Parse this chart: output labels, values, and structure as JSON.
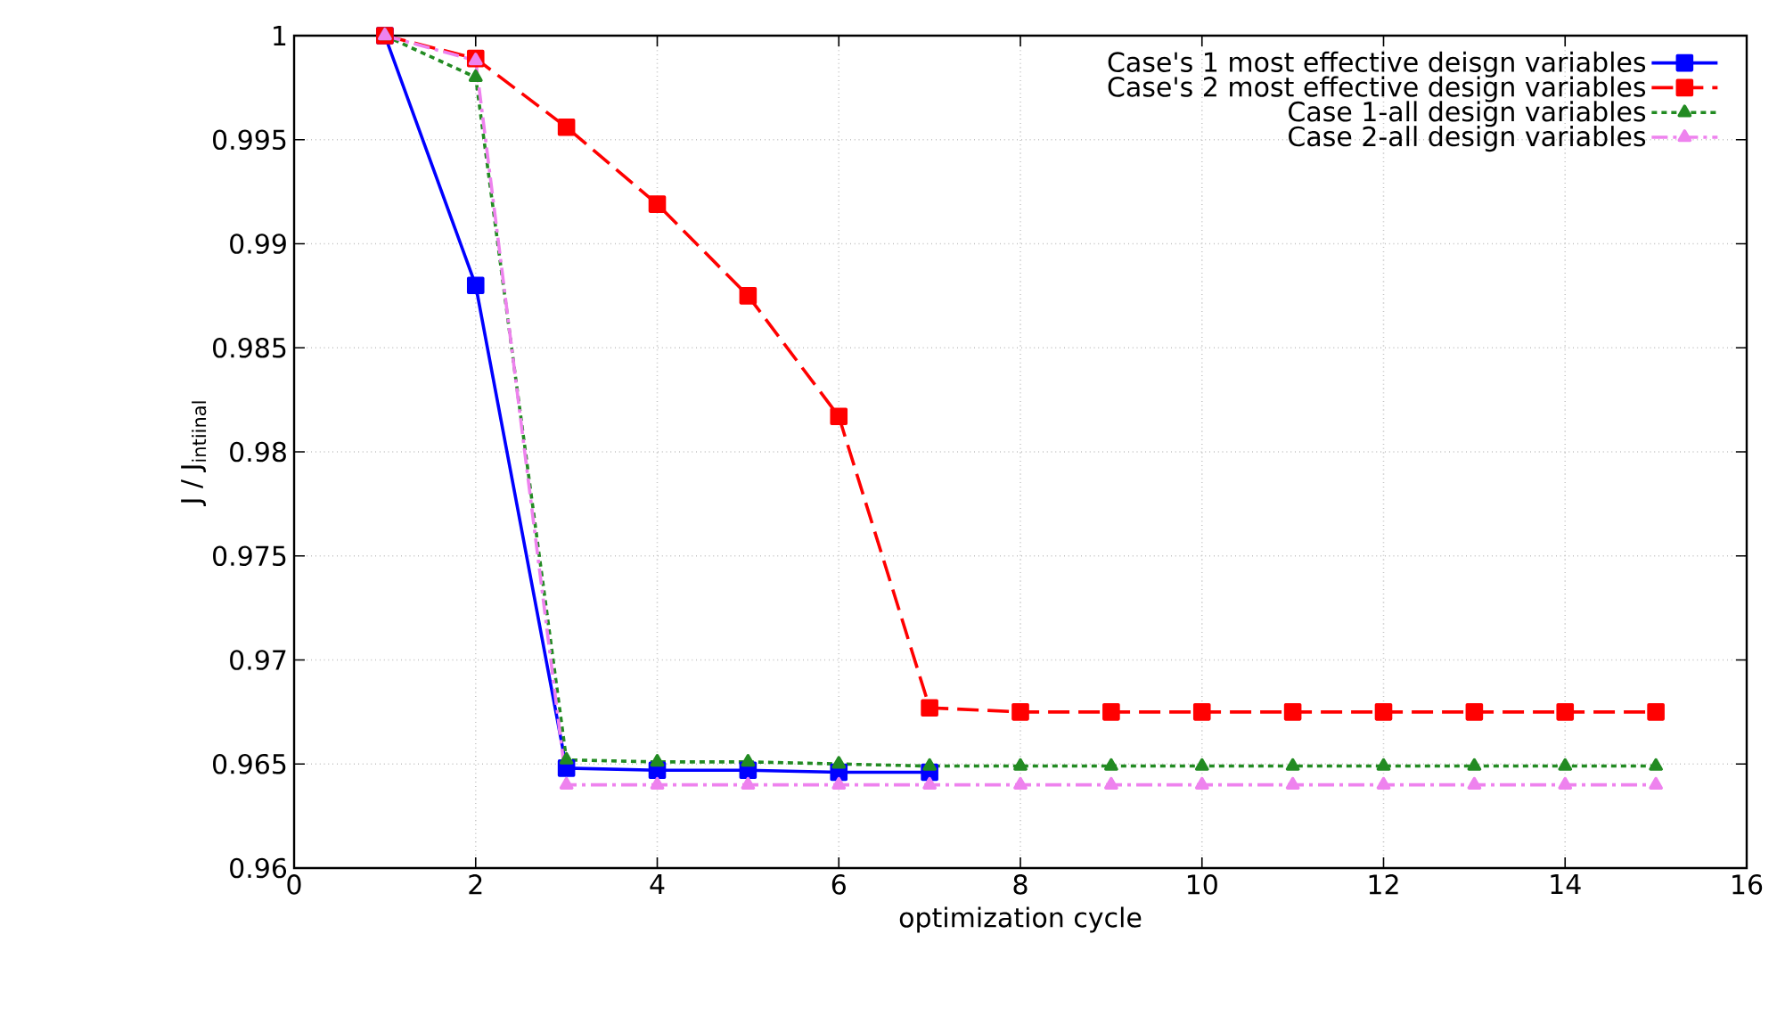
{
  "chart_data": {
    "type": "line",
    "xlabel": "optimization cycle",
    "ylabel": "J / J$_{intiinal}$",
    "x": [
      1,
      2,
      3,
      4,
      5,
      6,
      7,
      8,
      9,
      10,
      11,
      12,
      13,
      14,
      15
    ],
    "series": [
      {
        "name": "Case's 1 most effective deisgn variables",
        "color": "#0000ff",
        "marker": "square",
        "line_style": "solid",
        "values": [
          1.0,
          0.988,
          0.9648,
          0.9647,
          0.9647,
          0.9646,
          0.9646,
          null,
          null,
          null,
          null,
          null,
          null,
          null,
          null
        ]
      },
      {
        "name": "Case's 2 most effective design variables",
        "color": "#ff0000",
        "marker": "square",
        "line_style": "dashed",
        "values": [
          1.0,
          0.9989,
          0.9956,
          0.9919,
          0.9875,
          0.9817,
          0.9677,
          0.9675,
          0.9675,
          0.9675,
          0.9675,
          0.9675,
          0.9675,
          0.9675,
          0.9675
        ]
      },
      {
        "name": "Case 1-all design variables",
        "color": "#228b22",
        "marker": "triangle",
        "line_style": "dotted",
        "values": [
          1.0,
          0.998,
          0.9652,
          0.9651,
          0.9651,
          0.965,
          0.9649,
          0.9649,
          0.9649,
          0.9649,
          0.9649,
          0.9649,
          0.9649,
          0.9649,
          0.9649
        ]
      },
      {
        "name": "Case 2-all design variables",
        "color": "#ee82ee",
        "marker": "triangle",
        "line_style": "dashdot",
        "values": [
          1.0,
          0.9988,
          0.964,
          0.964,
          0.964,
          0.964,
          0.964,
          0.964,
          0.964,
          0.964,
          0.964,
          0.964,
          0.964,
          0.964,
          0.964
        ]
      }
    ],
    "xlim": [
      0,
      16
    ],
    "xticks": [
      0,
      2,
      4,
      6,
      8,
      10,
      12,
      14,
      16
    ],
    "ylim": [
      0.96,
      1
    ],
    "yticks": [
      0.96,
      0.965,
      0.97,
      0.975,
      0.98,
      0.985,
      0.99,
      0.995,
      1
    ],
    "grid": true,
    "legend": "top right"
  }
}
